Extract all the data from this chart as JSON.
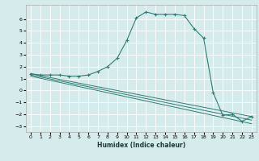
{
  "xlabel": "Humidex (Indice chaleur)",
  "ylabel": "",
  "background_color": "#d6ecec",
  "grid_color": "#ffffff",
  "line_color": "#2e7d72",
  "xlim": [
    -0.5,
    23.5
  ],
  "ylim": [
    -3.5,
    7.2
  ],
  "yticks": [
    -3,
    -2,
    -1,
    0,
    1,
    2,
    3,
    4,
    5,
    6
  ],
  "xticks": [
    0,
    1,
    2,
    3,
    4,
    5,
    6,
    7,
    8,
    9,
    10,
    11,
    12,
    13,
    14,
    15,
    16,
    17,
    18,
    19,
    20,
    21,
    22,
    23
  ],
  "series": [
    {
      "x": [
        0,
        1,
        2,
        3,
        4,
        5,
        6,
        7,
        8,
        9,
        10,
        11,
        12,
        13,
        14,
        15,
        16,
        17,
        18,
        19,
        20,
        21,
        22,
        23
      ],
      "y": [
        1.4,
        1.3,
        1.3,
        1.3,
        1.2,
        1.2,
        1.3,
        1.6,
        2.0,
        2.7,
        4.2,
        6.1,
        6.6,
        6.4,
        6.4,
        6.4,
        6.3,
        5.2,
        4.4,
        -0.2,
        -2.1,
        -2.0,
        -2.6,
        -2.2
      ]
    },
    {
      "x": [
        0,
        23
      ],
      "y": [
        1.4,
        -2.2
      ]
    },
    {
      "x": [
        0,
        23
      ],
      "y": [
        1.3,
        -2.5
      ]
    },
    {
      "x": [
        0,
        23
      ],
      "y": [
        1.2,
        -2.8
      ]
    }
  ]
}
